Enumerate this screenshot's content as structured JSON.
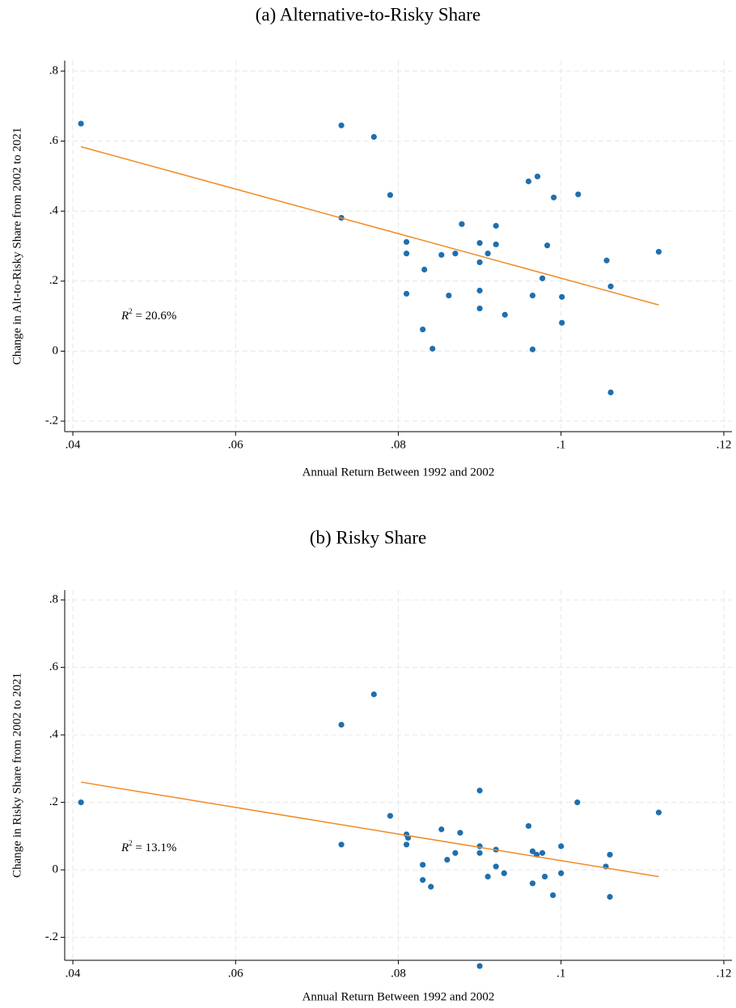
{
  "chart_data": [
    {
      "type": "scatter",
      "title": "(a) Alternative-to-Risky Share",
      "xlabel": "Annual Return Between 1992 and 2002",
      "ylabel": "Change in Alt-to-Risky Share from 2002 to 2021",
      "color": "#1f6fae",
      "x": [
        0.041,
        0.073,
        0.077,
        0.079,
        0.073,
        0.081,
        0.081,
        0.0878,
        0.092,
        0.09,
        0.092,
        0.0853,
        0.087,
        0.091,
        0.0832,
        0.09,
        0.0983,
        0.096,
        0.0971,
        0.0991,
        0.1021,
        0.1056,
        0.112,
        0.0977,
        0.1061,
        0.081,
        0.0862,
        0.09,
        0.0965,
        0.1001,
        0.09,
        0.0931,
        0.1001,
        0.083,
        0.0842,
        0.0965,
        0.1061
      ],
      "y": [
        0.65,
        0.645,
        0.612,
        0.446,
        0.381,
        0.312,
        0.279,
        0.363,
        0.358,
        0.309,
        0.305,
        0.275,
        0.279,
        0.279,
        0.233,
        0.254,
        0.302,
        0.485,
        0.499,
        0.439,
        0.448,
        0.259,
        0.284,
        0.208,
        0.185,
        0.164,
        0.159,
        0.173,
        0.159,
        0.155,
        0.122,
        0.104,
        0.081,
        0.062,
        0.007,
        0.005,
        -0.118
      ],
      "fit": {
        "color": "#f08a24",
        "x": [
          0.041,
          0.112
        ],
        "y": [
          0.584,
          0.132
        ]
      },
      "annotation": {
        "symbol": "R",
        "superscript": "2",
        "text": " = 20.6%"
      },
      "xlim": [
        0.039,
        0.121
      ],
      "xticks": [
        {
          "value": 0.04,
          "label": ".04"
        },
        {
          "value": 0.06,
          "label": ".06"
        },
        {
          "value": 0.08,
          "label": ".08"
        },
        {
          "value": 0.1,
          "label": ".1"
        },
        {
          "value": 0.12,
          "label": ".12"
        }
      ],
      "ylim": [
        -0.23,
        0.83
      ],
      "yticks": [
        {
          "value": -0.2,
          "label": "-.2"
        },
        0,
        {
          "value": 0.2,
          "label": ".2"
        },
        {
          "value": 0.4,
          "label": ".4"
        },
        {
          "value": 0.6,
          "label": ".6"
        },
        {
          "value": 0.8,
          "label": ".8"
        }
      ],
      "grid": true
    },
    {
      "type": "scatter",
      "title": "(b) Risky Share",
      "xlabel": "Annual Return Between 1992 and 2002",
      "ylabel": "Change in Risky Share from 2002 to 2021",
      "color": "#1f6fae",
      "x": [
        0.041,
        0.073,
        0.077,
        0.073,
        0.079,
        0.081,
        0.0812,
        0.081,
        0.083,
        0.083,
        0.084,
        0.0853,
        0.086,
        0.087,
        0.0876,
        0.09,
        0.09,
        0.09,
        0.09,
        0.091,
        0.092,
        0.092,
        0.093,
        0.096,
        0.0965,
        0.0965,
        0.097,
        0.0977,
        0.098,
        0.099,
        0.1,
        0.1,
        0.102,
        0.1055,
        0.106,
        0.106,
        0.112
      ],
      "y": [
        0.2,
        0.43,
        0.52,
        0.075,
        0.16,
        0.105,
        0.095,
        0.075,
        0.015,
        -0.03,
        -0.05,
        0.12,
        0.03,
        0.05,
        0.11,
        0.235,
        0.07,
        0.05,
        -0.285,
        -0.02,
        0.06,
        0.01,
        -0.01,
        0.13,
        0.055,
        -0.04,
        0.045,
        0.05,
        -0.02,
        -0.075,
        0.07,
        -0.01,
        0.2,
        0.01,
        0.045,
        -0.08,
        0.17
      ],
      "fit": {
        "color": "#f08a24",
        "x": [
          0.041,
          0.112
        ],
        "y": [
          0.26,
          -0.02
        ]
      },
      "annotation": {
        "symbol": "R",
        "superscript": "2",
        "text": " = 13.1%"
      },
      "xlim": [
        0.039,
        0.121
      ],
      "xticks": [
        {
          "value": 0.04,
          "label": ".04"
        },
        {
          "value": 0.06,
          "label": ".06"
        },
        {
          "value": 0.08,
          "label": ".08"
        },
        {
          "value": 0.1,
          "label": ".1"
        },
        {
          "value": 0.12,
          "label": ".12"
        }
      ],
      "ylim": [
        -0.268,
        0.829
      ],
      "yticks": [
        {
          "value": -0.2,
          "label": "-.2"
        },
        0,
        {
          "value": 0.2,
          "label": ".2"
        },
        {
          "value": 0.4,
          "label": ".4"
        },
        {
          "value": 0.6,
          "label": ".6"
        },
        {
          "value": 0.8,
          "label": ".8"
        }
      ],
      "grid": true
    }
  ]
}
